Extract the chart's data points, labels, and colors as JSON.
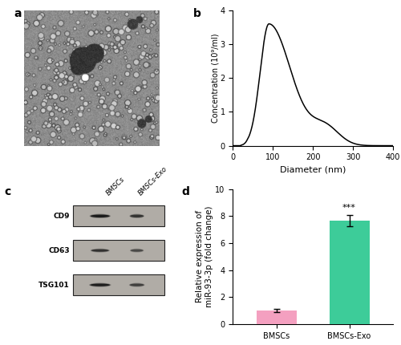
{
  "panel_labels": [
    "a",
    "b",
    "c",
    "d"
  ],
  "panel_label_fontsize": 10,
  "panel_label_fontweight": "bold",
  "nta_xlabel": "Diameter (nm)",
  "nta_ylabel": "Concentration (10⁹/ml)",
  "nta_xlim": [
    0,
    400
  ],
  "nta_ylim": [
    0,
    4
  ],
  "nta_yticks": [
    0,
    1,
    2,
    3,
    4
  ],
  "nta_xticks": [
    0,
    100,
    200,
    300,
    400
  ],
  "nta_line_color": "#000000",
  "wb_proteins": [
    "CD9",
    "CD63",
    "TSG101"
  ],
  "wb_labels": [
    "BMSCs",
    "BMSCs-Exo"
  ],
  "wb_box_facecolor": "#b8b4ae",
  "wb_band_color": "#222222",
  "bar_categories": [
    "BMSCs",
    "BMSCs-Exo"
  ],
  "bar_values": [
    1.0,
    7.65
  ],
  "bar_errors": [
    0.12,
    0.42
  ],
  "bar_colors": [
    "#f4a0c0",
    "#3dcc99"
  ],
  "bar_ylabel": "Relative expression of\nmiR-93-3p (fold change)",
  "bar_ylim": [
    0,
    10
  ],
  "bar_yticks": [
    0,
    2,
    4,
    6,
    8,
    10
  ],
  "bar_sig_text": "***",
  "bar_sig_fontsize": 8,
  "figure_bg": "#ffffff",
  "tick_fontsize": 7,
  "label_fontsize": 8
}
